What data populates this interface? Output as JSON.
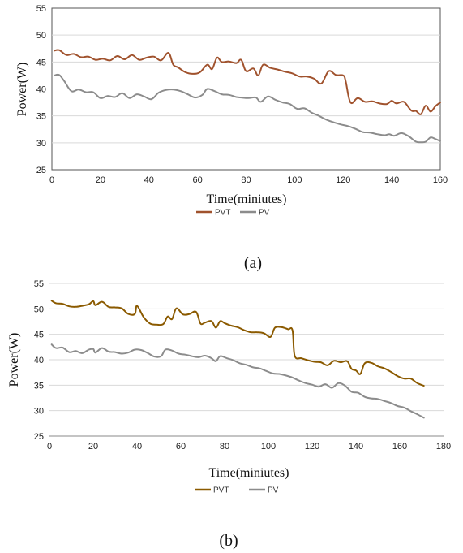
{
  "chart_data": [
    {
      "type": "line",
      "panel": "a",
      "caption": "(a)",
      "xlabel": "Time(miniutes)",
      "ylabel": "Power(W)",
      "xlim": [
        0,
        160
      ],
      "ylim": [
        25,
        55
      ],
      "xticks": [
        0,
        20,
        40,
        60,
        80,
        100,
        120,
        140,
        160
      ],
      "yticks": [
        25,
        30,
        35,
        40,
        45,
        50,
        55
      ],
      "grid": "horizontal",
      "legend_position": "bottom-center",
      "series": [
        {
          "name": "PVT",
          "color": "#A0522D",
          "x": [
            1,
            3,
            6,
            9,
            12,
            15,
            18,
            21,
            24,
            27,
            30,
            33,
            36,
            39,
            42,
            45,
            48,
            50,
            52,
            55,
            58,
            61,
            64,
            66,
            68,
            70,
            73,
            76,
            78,
            80,
            83,
            85,
            87,
            90,
            93,
            96,
            99,
            102,
            105,
            108,
            111,
            114,
            117,
            120,
            121,
            123,
            126,
            129,
            132,
            135,
            138,
            140,
            142,
            145,
            148,
            150,
            152,
            154,
            156,
            158,
            160
          ],
          "y": [
            47.1,
            47.2,
            46.3,
            46.5,
            45.9,
            46.0,
            45.4,
            45.6,
            45.3,
            46.1,
            45.5,
            46.3,
            45.4,
            45.8,
            46.0,
            45.3,
            46.7,
            44.5,
            44.0,
            43.1,
            42.8,
            43.1,
            44.5,
            43.7,
            45.8,
            45.0,
            45.1,
            44.8,
            45.4,
            43.3,
            43.8,
            42.5,
            44.5,
            43.9,
            43.6,
            43.2,
            42.9,
            42.3,
            42.3,
            41.9,
            41.0,
            43.3,
            42.6,
            42.5,
            41.5,
            37.5,
            38.3,
            37.6,
            37.7,
            37.3,
            37.2,
            37.8,
            37.3,
            37.6,
            36.0,
            35.9,
            35.3,
            36.9,
            35.8,
            36.8,
            37.5
          ]
        },
        {
          "name": "PV",
          "color": "#8C8C8C",
          "x": [
            1,
            3,
            5,
            8,
            11,
            14,
            17,
            20,
            23,
            26,
            29,
            32,
            35,
            38,
            41,
            44,
            47,
            50,
            53,
            56,
            59,
            62,
            64,
            67,
            70,
            73,
            76,
            78,
            81,
            84,
            86,
            89,
            92,
            95,
            98,
            101,
            104,
            107,
            110,
            113,
            116,
            119,
            122,
            125,
            128,
            131,
            134,
            137,
            139,
            141,
            144,
            147,
            150,
            152,
            154,
            156,
            158,
            160
          ],
          "y": [
            42.5,
            42.6,
            41.5,
            39.6,
            39.9,
            39.4,
            39.4,
            38.3,
            38.7,
            38.5,
            39.2,
            38.3,
            39.0,
            38.6,
            38.1,
            39.3,
            39.8,
            39.9,
            39.6,
            39.0,
            38.4,
            38.9,
            40.0,
            39.6,
            39.0,
            38.9,
            38.5,
            38.4,
            38.3,
            38.4,
            37.6,
            38.6,
            38.0,
            37.5,
            37.2,
            36.3,
            36.4,
            35.6,
            35.0,
            34.3,
            33.8,
            33.4,
            33.1,
            32.6,
            32.0,
            31.9,
            31.6,
            31.4,
            31.6,
            31.3,
            31.8,
            31.2,
            30.2,
            30.1,
            30.2,
            31.0,
            30.7,
            30.3
          ]
        }
      ]
    },
    {
      "type": "line",
      "panel": "b",
      "caption": "(b)",
      "xlabel": "Time(miniutes)",
      "ylabel": "Power(W)",
      "xlim": [
        0,
        180
      ],
      "ylim": [
        25,
        55
      ],
      "xticks": [
        0,
        20,
        40,
        60,
        80,
        100,
        120,
        140,
        160,
        180
      ],
      "yticks": [
        25,
        30,
        35,
        40,
        45,
        50,
        55
      ],
      "grid": "horizontal",
      "legend_position": "bottom-center",
      "series": [
        {
          "name": "PVT",
          "color": "#8B5A00",
          "x": [
            1,
            3,
            6,
            9,
            12,
            15,
            18,
            20,
            21,
            24,
            27,
            30,
            33,
            36,
            39,
            40,
            43,
            46,
            49,
            52,
            54,
            56,
            58,
            61,
            64,
            67,
            69,
            71,
            74,
            76,
            78,
            80,
            83,
            86,
            89,
            92,
            95,
            98,
            101,
            103,
            106,
            109,
            111,
            112,
            115,
            118,
            121,
            124,
            127,
            130,
            133,
            136,
            138,
            140,
            142,
            144,
            147,
            150,
            153,
            156,
            159,
            162,
            165,
            168,
            171
          ],
          "y": [
            51.6,
            51.1,
            51.0,
            50.5,
            50.4,
            50.6,
            50.9,
            51.5,
            50.7,
            51.4,
            50.4,
            50.3,
            50.1,
            49.0,
            49.0,
            50.6,
            48.4,
            47.1,
            46.9,
            47.0,
            48.5,
            48.0,
            50.1,
            48.9,
            49.0,
            49.4,
            47.1,
            47.3,
            47.6,
            46.3,
            47.6,
            47.2,
            46.7,
            46.4,
            45.8,
            45.4,
            45.4,
            45.2,
            44.5,
            46.3,
            46.4,
            46.0,
            45.8,
            40.8,
            40.3,
            39.9,
            39.6,
            39.5,
            38.9,
            39.8,
            39.5,
            39.7,
            38.2,
            37.9,
            37.2,
            39.3,
            39.4,
            38.7,
            38.3,
            37.6,
            36.8,
            36.3,
            36.3,
            35.4,
            34.9
          ]
        },
        {
          "name": "PV",
          "color": "#8C8C8C",
          "x": [
            1,
            3,
            6,
            9,
            12,
            15,
            18,
            20,
            21,
            24,
            27,
            30,
            33,
            36,
            39,
            42,
            45,
            48,
            51,
            53,
            56,
            59,
            62,
            65,
            68,
            71,
            74,
            76,
            78,
            81,
            84,
            87,
            90,
            93,
            96,
            99,
            102,
            105,
            108,
            111,
            114,
            117,
            120,
            123,
            126,
            129,
            132,
            135,
            138,
            141,
            144,
            147,
            150,
            153,
            156,
            159,
            162,
            165,
            168,
            171
          ],
          "y": [
            43.0,
            42.3,
            42.4,
            41.5,
            41.7,
            41.3,
            42.0,
            42.1,
            41.4,
            42.3,
            41.6,
            41.5,
            41.2,
            41.4,
            42.0,
            41.9,
            41.3,
            40.6,
            40.7,
            42.0,
            41.8,
            41.2,
            41.0,
            40.7,
            40.5,
            40.8,
            40.3,
            39.7,
            40.7,
            40.3,
            39.9,
            39.3,
            39.0,
            38.5,
            38.3,
            37.8,
            37.3,
            37.2,
            36.9,
            36.5,
            35.9,
            35.4,
            35.1,
            34.7,
            35.2,
            34.5,
            35.4,
            34.9,
            33.7,
            33.5,
            32.7,
            32.4,
            32.3,
            31.9,
            31.5,
            30.9,
            30.6,
            29.9,
            29.3,
            28.6
          ]
        }
      ]
    }
  ]
}
